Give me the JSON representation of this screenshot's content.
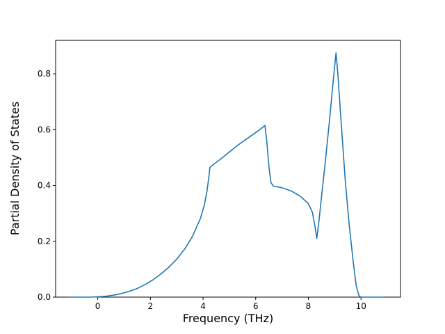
{
  "figure": {
    "background": "#ffffff"
  },
  "chart_data": {
    "type": "line",
    "title": "",
    "xlabel": "Frequency (THz)",
    "ylabel": "Partial Density of States",
    "xlim": [
      -1.6,
      11.5
    ],
    "ylim": [
      0,
      0.92
    ],
    "x_ticks": [
      0,
      2,
      4,
      6,
      8,
      10
    ],
    "x_tick_labels": [
      "0",
      "2",
      "4",
      "6",
      "8",
      "10"
    ],
    "y_ticks": [
      0.0,
      0.2,
      0.4,
      0.6,
      0.8
    ],
    "y_tick_labels": [
      "0.0",
      "0.2",
      "0.4",
      "0.6",
      "0.8"
    ],
    "grid": false,
    "legend": null,
    "line_color": "#1f77b4",
    "line_width": 1.6,
    "series": [
      {
        "name": "partial-dos",
        "points": [
          [
            -1.05,
            0.0
          ],
          [
            -0.7,
            0.0
          ],
          [
            -0.3,
            0.0
          ],
          [
            0.0,
            0.001
          ],
          [
            0.3,
            0.003
          ],
          [
            0.6,
            0.007
          ],
          [
            0.9,
            0.013
          ],
          [
            1.2,
            0.021
          ],
          [
            1.5,
            0.031
          ],
          [
            1.8,
            0.045
          ],
          [
            2.1,
            0.062
          ],
          [
            2.4,
            0.083
          ],
          [
            2.7,
            0.107
          ],
          [
            3.0,
            0.136
          ],
          [
            3.3,
            0.172
          ],
          [
            3.6,
            0.218
          ],
          [
            3.9,
            0.282
          ],
          [
            4.05,
            0.33
          ],
          [
            4.15,
            0.38
          ],
          [
            4.22,
            0.43
          ],
          [
            4.26,
            0.465
          ],
          [
            4.4,
            0.476
          ],
          [
            4.7,
            0.497
          ],
          [
            5.0,
            0.52
          ],
          [
            5.3,
            0.543
          ],
          [
            5.6,
            0.563
          ],
          [
            5.9,
            0.583
          ],
          [
            6.15,
            0.6
          ],
          [
            6.35,
            0.615
          ],
          [
            6.42,
            0.56
          ],
          [
            6.5,
            0.47
          ],
          [
            6.58,
            0.41
          ],
          [
            6.68,
            0.397
          ],
          [
            6.9,
            0.394
          ],
          [
            7.1,
            0.389
          ],
          [
            7.4,
            0.378
          ],
          [
            7.7,
            0.361
          ],
          [
            8.0,
            0.335
          ],
          [
            8.15,
            0.305
          ],
          [
            8.25,
            0.255
          ],
          [
            8.32,
            0.21
          ],
          [
            8.4,
            0.27
          ],
          [
            8.5,
            0.36
          ],
          [
            8.65,
            0.49
          ],
          [
            8.8,
            0.63
          ],
          [
            8.95,
            0.78
          ],
          [
            9.05,
            0.875
          ],
          [
            9.12,
            0.8
          ],
          [
            9.25,
            0.62
          ],
          [
            9.4,
            0.42
          ],
          [
            9.55,
            0.26
          ],
          [
            9.7,
            0.13
          ],
          [
            9.82,
            0.04
          ],
          [
            9.92,
            0.005
          ],
          [
            10.0,
            0.0
          ],
          [
            10.4,
            0.0
          ],
          [
            10.85,
            0.0
          ]
        ]
      }
    ]
  }
}
